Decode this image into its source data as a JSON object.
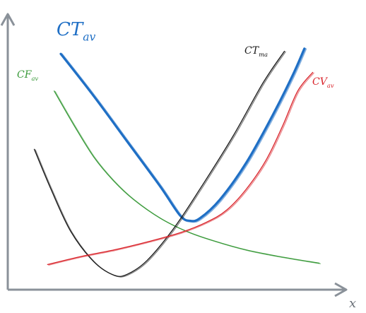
{
  "chart_data": {
    "type": "line",
    "title": "",
    "xlabel": "x",
    "ylabel": "",
    "grid": false,
    "legend": "none (curves labelled inline at their upper ends)",
    "xlim": [
      0,
      10
    ],
    "ylim": [
      0,
      10
    ],
    "series": [
      {
        "name": "CTav",
        "label_main": "CT",
        "label_sub": "av",
        "color": "#1f6fc5",
        "points": [
          [
            1.6,
            8.9
          ],
          [
            2.6,
            7.3
          ],
          [
            3.6,
            5.6
          ],
          [
            4.6,
            3.9
          ],
          [
            5.2,
            2.8
          ],
          [
            5.5,
            2.6
          ],
          [
            5.8,
            2.7
          ],
          [
            6.4,
            3.4
          ],
          [
            7.2,
            4.8
          ],
          [
            8.0,
            6.6
          ],
          [
            8.6,
            8.1
          ],
          [
            8.95,
            9.1
          ]
        ]
      },
      {
        "name": "CFav",
        "label_main": "CF",
        "label_sub": "av",
        "color": "#3a9a3a",
        "points": [
          [
            1.4,
            7.5
          ],
          [
            2.0,
            6.2
          ],
          [
            2.6,
            5.0
          ],
          [
            3.2,
            4.1
          ],
          [
            3.8,
            3.4
          ],
          [
            4.6,
            2.7
          ],
          [
            5.4,
            2.2
          ],
          [
            6.2,
            1.85
          ],
          [
            7.2,
            1.5
          ],
          [
            8.2,
            1.25
          ],
          [
            9.4,
            1.0
          ]
        ]
      },
      {
        "name": "CTma",
        "label_main": "CT",
        "label_sub": "ma",
        "color": "#1a1a1a",
        "points": [
          [
            0.8,
            5.3
          ],
          [
            1.3,
            3.8
          ],
          [
            1.9,
            2.2
          ],
          [
            2.6,
            1.05
          ],
          [
            3.2,
            0.55
          ],
          [
            3.6,
            0.58
          ],
          [
            4.2,
            1.1
          ],
          [
            5.0,
            2.3
          ],
          [
            5.8,
            3.8
          ],
          [
            6.8,
            5.8
          ],
          [
            7.7,
            7.8
          ],
          [
            8.35,
            9.0
          ]
        ]
      },
      {
        "name": "CVav",
        "label_main": "CV",
        "label_sub": "av",
        "color": "#d9232a",
        "points": [
          [
            1.2,
            0.95
          ],
          [
            2.2,
            1.25
          ],
          [
            3.2,
            1.5
          ],
          [
            4.2,
            1.8
          ],
          [
            5.2,
            2.15
          ],
          [
            6.0,
            2.55
          ],
          [
            6.6,
            3.0
          ],
          [
            7.2,
            3.8
          ],
          [
            7.8,
            4.9
          ],
          [
            8.3,
            6.2
          ],
          [
            8.75,
            7.5
          ],
          [
            9.2,
            8.2
          ]
        ]
      }
    ]
  }
}
